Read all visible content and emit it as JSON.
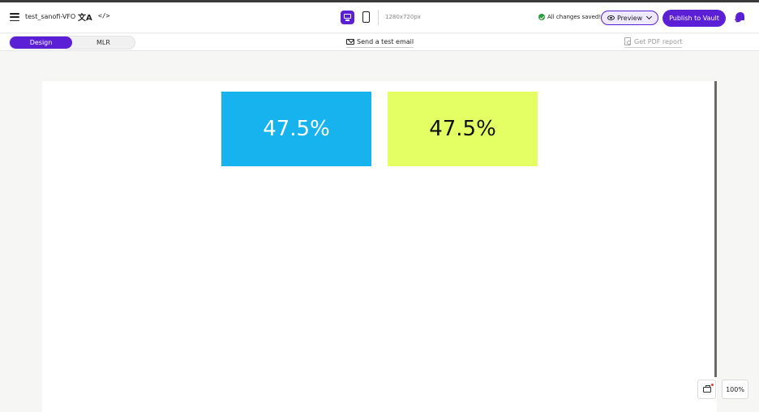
{
  "header": {
    "project_name": "test_sanofi-VFO",
    "translate_icon": "translate-icon",
    "code_icon": "code-icon",
    "device_toggle": {
      "desktop_icon": "desktop-icon",
      "mobile_icon": "mobile-icon",
      "selected": "desktop"
    },
    "resolution": "1280x720px",
    "save_status": "All changes saved!",
    "preview_label": "Preview",
    "publish_label": "Publish to Vault",
    "accent_color": "#5b1fd6"
  },
  "subbar": {
    "tabs": [
      {
        "label": "Design",
        "active": true
      },
      {
        "label": "MLR",
        "active": false
      }
    ],
    "send_test_email": "Send a test email",
    "pdf_report": "Get PDF report"
  },
  "canvas": {
    "boxes": [
      {
        "value": "47.5%",
        "color": "#16b3ee",
        "text_color": "#ffffff"
      },
      {
        "value": "47.5%",
        "color": "#e3ff63",
        "text_color": "#111111"
      }
    ]
  },
  "bottom_controls": {
    "layers_icon": "layers-icon",
    "zoom": "100%"
  }
}
